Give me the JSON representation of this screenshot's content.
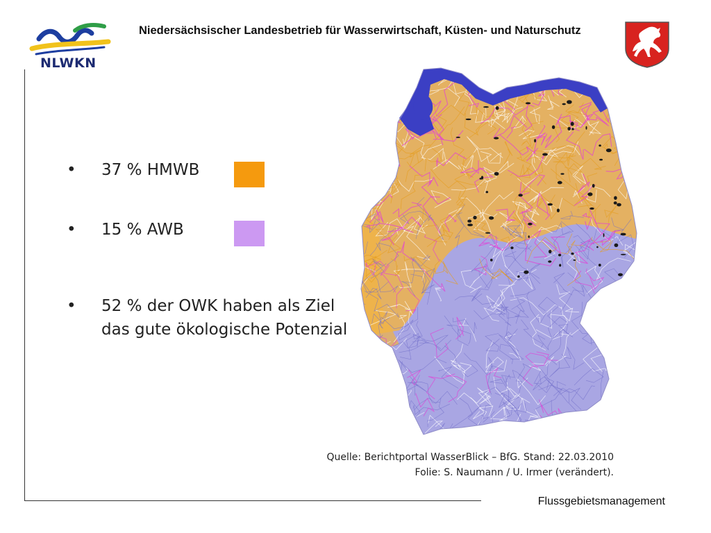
{
  "header": {
    "logo_text": "NLWKN",
    "org_title": "Niedersächsischer Landesbetrieb für Wasserwirtschaft, Küsten- und Naturschutz"
  },
  "bullets": [
    {
      "marker": "•",
      "text_line1": "37 % HMWB",
      "swatch_color": "#f59a0e"
    },
    {
      "marker": "•",
      "text_line1": "15 % AWB",
      "swatch_color": "#cc99f2"
    },
    {
      "marker": "•",
      "text_line1": "52 % der OWK haben als Ziel",
      "text_line2": "das gute ökologische Potenzial"
    }
  ],
  "source": {
    "line1": "Quelle: Berichtportal WasserBlick – BfG. Stand:  22.03.2010",
    "line2": "Folie: S. Naumann / U. Irmer (verändert)."
  },
  "footer": {
    "label": "Flussgebietsmanagement"
  },
  "map": {
    "colors": {
      "coastal": "#3b3fc4",
      "natural": "#a9a6e3",
      "hmwb": "#f2b441",
      "awb": "#e23fd6",
      "lake": "#1a1a1a"
    }
  }
}
